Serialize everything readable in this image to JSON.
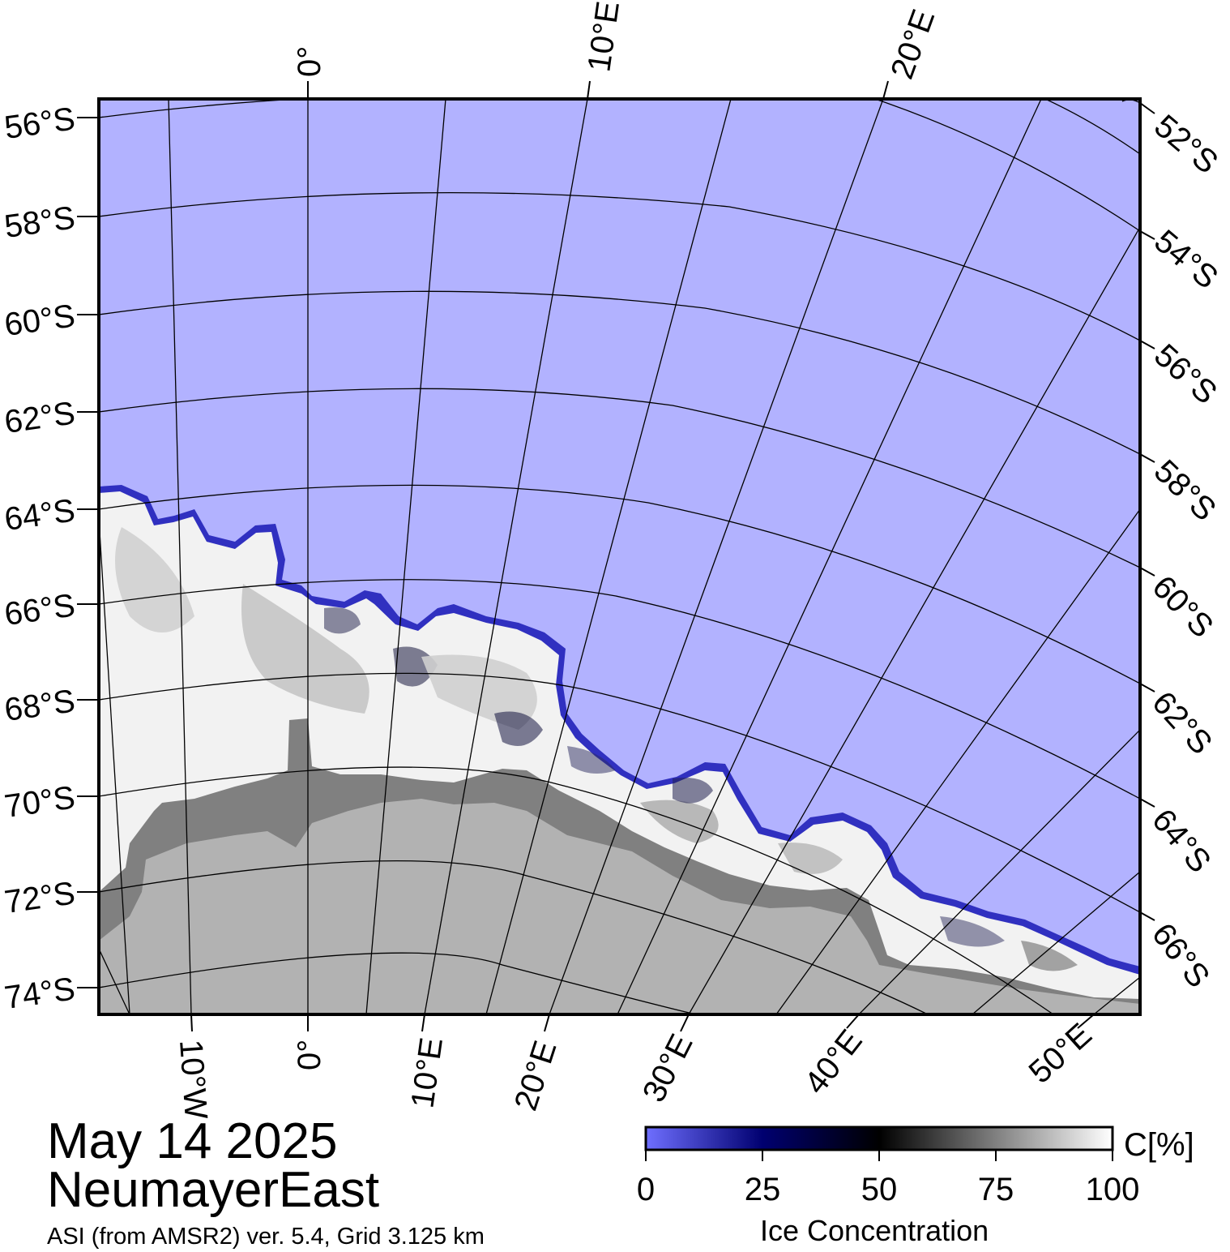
{
  "title": {
    "date": "May 14 2025",
    "region": "NeumayerEast",
    "source": "ASI (from AMSR2) ver. 5.4,  Grid 3.125 km"
  },
  "colorbar": {
    "unit": "C[%]",
    "label": "Ice Concentration",
    "ticks": [
      "0",
      "25",
      "50",
      "75",
      "100"
    ],
    "colors": [
      "#6f6fff",
      "#000070",
      "#000000",
      "#808080",
      "#ffffff"
    ]
  },
  "legend_colors": {
    "ocean": "#b2b2ff",
    "ice_shelf": "#808080",
    "land": "#b2b2b2",
    "grid": "#000000"
  },
  "grid_labels": {
    "left_lat": [
      "56°S",
      "58°S",
      "60°S",
      "62°S",
      "64°S",
      "66°S",
      "68°S",
      "70°S",
      "72°S",
      "74°S"
    ],
    "right_lat": [
      "52°S",
      "54°S",
      "56°S",
      "58°S",
      "60°S",
      "62°S",
      "64°S",
      "66°S"
    ],
    "top_lon": [
      "0°",
      "10°E",
      "20°E"
    ],
    "bottom_lon": [
      "10°W",
      "0°",
      "10°E",
      "20°E",
      "30°E",
      "40°E",
      "50°E"
    ]
  }
}
